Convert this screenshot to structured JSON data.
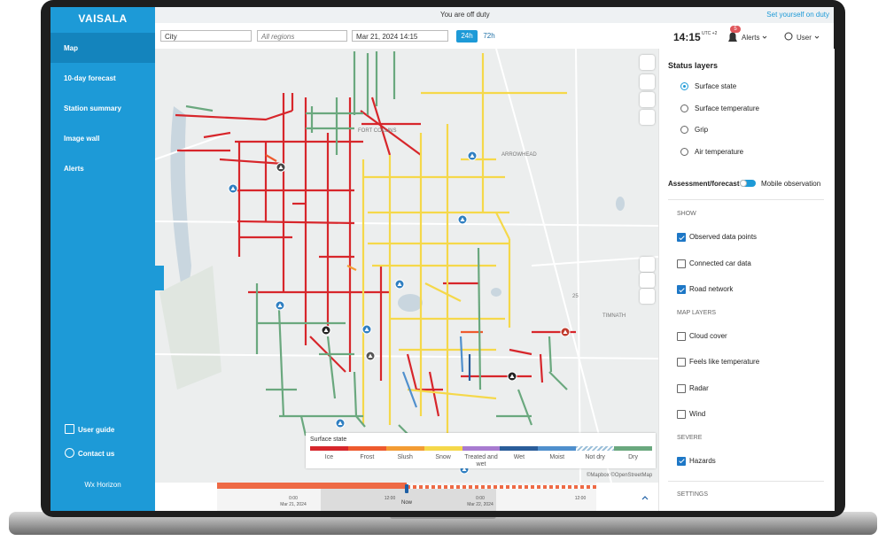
{
  "sidebar": {
    "logo": "VAISALA",
    "nav": [
      "Map",
      "10-day forecast",
      "Station summary",
      "Image wall",
      "Alerts"
    ],
    "footer": [
      "User guide",
      "Contact us",
      "Wx Horizon"
    ]
  },
  "topbar": {
    "status": "You are off duty",
    "action": "Set yourself on duty"
  },
  "toolbar": {
    "city": "City",
    "regions": "All regions",
    "datetime": "Mar 21, 2024 14:15",
    "range_buttons": [
      "24h",
      "72h"
    ],
    "time": "14:15",
    "timezone": "UTC +2",
    "alerts": "Alerts",
    "alert_count": 5,
    "user": "User"
  },
  "map": {
    "labels": [
      "FORT COLLINS",
      "ARROWHEAD",
      "TIMNATH",
      "25"
    ],
    "attribution": "©Mapbox ©OpenStreetMap"
  },
  "legend": {
    "title": "Surface state",
    "items": [
      {
        "label": "Ice",
        "color": "#d7262b"
      },
      {
        "label": "Frost",
        "color": "#ee5a2e"
      },
      {
        "label": "Slush",
        "color": "#f39c34"
      },
      {
        "label": "Snow",
        "color": "#f5d84a"
      },
      {
        "label": "Treated and wet",
        "color": "#a87bd0"
      },
      {
        "label": "Wet",
        "color": "#2a5d9a"
      },
      {
        "label": "Moist",
        "color": "#4f8fcd"
      },
      {
        "label": "Not dry",
        "color": "#9bbfd9"
      },
      {
        "label": "Dry",
        "color": "#6aa87e"
      }
    ]
  },
  "panel": {
    "title": "Status layers",
    "radios": [
      {
        "label": "Surface state",
        "selected": true
      },
      {
        "label": "Surface temperature",
        "selected": false
      },
      {
        "label": "Grip",
        "selected": false
      },
      {
        "label": "Air temperature",
        "selected": false
      }
    ],
    "toggle_left": "Assessment/forecast",
    "toggle_right": "Mobile observation",
    "sections": [
      {
        "heading": "SHOW",
        "items": [
          {
            "label": "Observed data points",
            "checked": true
          },
          {
            "label": "Connected car data",
            "checked": false
          },
          {
            "label": "Road network",
            "checked": true
          }
        ]
      },
      {
        "heading": "MAP LAYERS",
        "items": [
          {
            "label": "Cloud cover",
            "checked": false
          },
          {
            "label": "Feels like temperature",
            "checked": false
          },
          {
            "label": "Radar",
            "checked": false
          },
          {
            "label": "Wind",
            "checked": false
          }
        ]
      },
      {
        "heading": "SEVERE",
        "items": [
          {
            "label": "Hazards",
            "checked": true
          }
        ]
      }
    ],
    "settings": "SETTINGS"
  },
  "timeline": {
    "ticks": [
      {
        "time": "0:00",
        "date": "Mar 21, 2024"
      },
      {
        "time": "12:00"
      },
      {
        "time": "0:00",
        "date": "Mar 22, 2024"
      },
      {
        "time": "12:00"
      }
    ],
    "now": "Now"
  }
}
